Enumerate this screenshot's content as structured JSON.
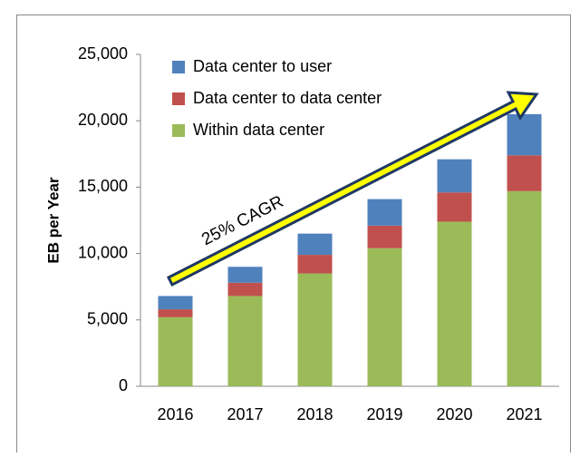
{
  "chart_data": {
    "type": "stacked_bar",
    "categories": [
      "2016",
      "2017",
      "2018",
      "2019",
      "2020",
      "2021"
    ],
    "series": [
      {
        "name": "Within data center",
        "color": "#9bbb59",
        "values": [
          5200,
          6800,
          8500,
          10400,
          12400,
          14700
        ]
      },
      {
        "name": "Data center to data center",
        "color": "#c0504d",
        "values": [
          600,
          1000,
          1400,
          1700,
          2200,
          2700
        ]
      },
      {
        "name": "Data center to user",
        "color": "#4f81bd",
        "values": [
          1000,
          1200,
          1600,
          2000,
          2500,
          3100
        ]
      }
    ],
    "ylabel": "EB per Year",
    "ylim": [
      0,
      25000
    ],
    "yticks": [
      0,
      {
        "value": 5000,
        "label": "5,000"
      },
      {
        "value": 10000,
        "label": "10,000"
      },
      {
        "value": 15000,
        "label": "15,000"
      },
      {
        "value": 20000,
        "label": "20,000"
      },
      {
        "value": 25000,
        "label": "25,000"
      }
    ],
    "annotation": "25% CAGR",
    "legend": "upper left",
    "grid": false
  }
}
